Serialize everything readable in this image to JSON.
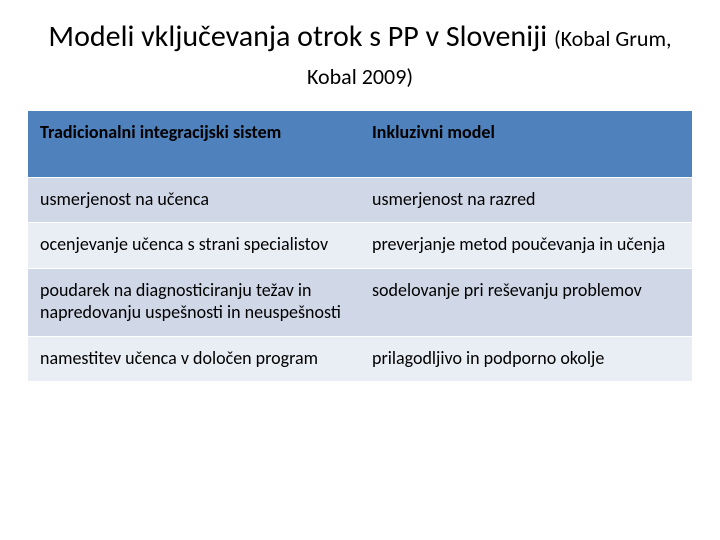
{
  "title": {
    "main": "Modeli vključevanja otrok s PP v Sloveniji",
    "citation": "(Kobal Grum, Kobal 2009)",
    "fontsize_main": 30,
    "fontsize_citation": 22,
    "align": "center",
    "color": "#000000"
  },
  "table": {
    "type": "table",
    "columns": [
      {
        "label": "Tradicionalni integracijski sistem",
        "width_pct": 50,
        "align": "left"
      },
      {
        "label": "Inkluzivni model",
        "width_pct": 50,
        "align": "left"
      }
    ],
    "rows": [
      [
        "usmerjenost na učenca",
        "usmerjenost na razred"
      ],
      [
        "ocenjevanje učenca s strani specialistov",
        "preverjanje metod poučevanja in učenja"
      ],
      [
        "poudarek na diagnosticiranju težav in napredovanju uspešnosti in neuspešnosti",
        "sodelovanje pri reševanju problemov"
      ],
      [
        "namestitev učenca v določen program",
        "prilagodljivo in podporno okolje"
      ]
    ],
    "header_bg": "#4f81bd",
    "header_text_color": "#000000",
    "row_band_colors": [
      "#d0d8e8",
      "#e9edf4"
    ],
    "border_color": "#ffffff",
    "cell_fontsize": 18,
    "header_fontweight": 700,
    "cell_fontweight": 400
  },
  "background_color": "#ffffff"
}
